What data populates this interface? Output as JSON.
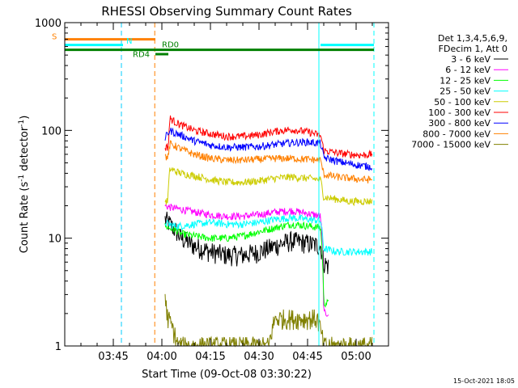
{
  "chart_data": {
    "type": "line",
    "title": "RHESSI Observing Summary Count Rates",
    "xlabel": "Start Time (09-Oct-08 03:30:22)",
    "ylabel_main": "Count Rate (s",
    "ylabel_sup1": "-1",
    "ylabel_mid": " detector",
    "ylabel_sup2": "-1",
    "ylabel_end": ")",
    "x_unit": "minutes after 03:30 UT",
    "xlim": [
      0,
      100
    ],
    "ylim": [
      1,
      1000
    ],
    "yscale": "log",
    "x_ticks": [
      {
        "label": "03:45",
        "value": 15
      },
      {
        "label": "04:00",
        "value": 30
      },
      {
        "label": "04:15",
        "value": 45
      },
      {
        "label": "04:30",
        "value": 60
      },
      {
        "label": "04:45",
        "value": 75
      },
      {
        "label": "05:00",
        "value": 90
      }
    ],
    "y_ticks": [
      {
        "label": "1",
        "value": 1
      },
      {
        "label": "10",
        "value": 10
      },
      {
        "label": "100",
        "value": 100
      },
      {
        "label": "1000",
        "value": 1000
      }
    ],
    "legend_header": [
      "Det 1,3,4,5,6,9,",
      "FDecim 1, Att 0"
    ],
    "legend_position": "right",
    "series": [
      {
        "name": "3 - 6 keV",
        "color": "#000000",
        "data_start": 31,
        "x": [
          31,
          32,
          34,
          36,
          40,
          45,
          50,
          55,
          60,
          65,
          70,
          75,
          79,
          80,
          81.5
        ],
        "y": [
          15,
          14,
          12,
          10,
          8.5,
          7.5,
          7,
          7,
          7.5,
          8.5,
          9.5,
          9,
          8.5,
          6,
          5.5
        ]
      },
      {
        "name": "6 - 12 keV",
        "color": "#ff00ff",
        "data_start": 31,
        "x": [
          31,
          32,
          34,
          36,
          40,
          45,
          50,
          55,
          60,
          65,
          70,
          75,
          79,
          80,
          81.5
        ],
        "y": [
          20,
          19.5,
          19,
          18.5,
          17.5,
          16.5,
          16,
          16,
          16.5,
          17.5,
          18,
          17,
          16,
          2,
          2
        ]
      },
      {
        "name": "12 - 25 keV",
        "color": "#00ff00",
        "data_start": 31,
        "x": [
          31,
          32,
          34,
          36,
          40,
          45,
          50,
          55,
          60,
          65,
          70,
          75,
          79,
          80,
          81.5
        ],
        "y": [
          13,
          12.5,
          12,
          11,
          10.5,
          10,
          10,
          10.5,
          11.5,
          12.5,
          13.5,
          13,
          12.5,
          2.5,
          2.5
        ]
      },
      {
        "name": "25 - 50 keV",
        "color": "#00ffff",
        "data_start": 31,
        "x": [
          31,
          32,
          34,
          36,
          40,
          45,
          50,
          55,
          60,
          65,
          70,
          75,
          79,
          80,
          84,
          88,
          92,
          95
        ],
        "y": [
          14,
          13.5,
          13,
          13,
          13.5,
          14,
          13.5,
          13.5,
          14,
          15,
          15.5,
          15,
          14.5,
          8,
          7.5,
          7.5,
          7.5,
          7.5
        ]
      },
      {
        "name": "50 - 100 keV",
        "color": "#cccc00",
        "data_start": 31,
        "x": [
          31,
          31.8,
          32.5,
          34,
          36,
          40,
          45,
          50,
          55,
          60,
          65,
          70,
          75,
          79,
          80,
          84,
          88,
          92,
          95
        ],
        "y": [
          22,
          22,
          44,
          42,
          40,
          38,
          35,
          33,
          33,
          34,
          36,
          37,
          36,
          35,
          24,
          23,
          22,
          22,
          22
        ]
      },
      {
        "name": "100 - 300 keV",
        "color": "#ff0000",
        "data_start": 31,
        "x": [
          31,
          32,
          32.5,
          34,
          36,
          40,
          45,
          50,
          55,
          60,
          65,
          70,
          75,
          79,
          80,
          84,
          88,
          92,
          95
        ],
        "y": [
          70,
          70,
          130,
          120,
          112,
          100,
          93,
          88,
          88,
          91,
          98,
          102,
          97,
          90,
          65,
          62,
          60,
          59,
          60
        ]
      },
      {
        "name": "300 - 800 keV",
        "color": "#0000ff",
        "data_start": 31,
        "x": [
          31,
          32.5,
          34,
          36,
          40,
          45,
          50,
          55,
          60,
          65,
          70,
          75,
          79,
          80,
          84,
          88,
          92,
          95
        ],
        "y": [
          85,
          100,
          95,
          90,
          80,
          73,
          70,
          70,
          71,
          74,
          77,
          78,
          76,
          56,
          52,
          49,
          47,
          46
        ]
      },
      {
        "name": "800 - 7000 keV",
        "color": "#ff8000",
        "data_start": 31,
        "x": [
          31,
          32,
          32.5,
          34,
          36,
          40,
          45,
          50,
          55,
          60,
          65,
          70,
          75,
          79,
          80,
          84,
          88,
          92,
          95
        ],
        "y": [
          57,
          57,
          75,
          72,
          67,
          60,
          55,
          53,
          53,
          54,
          55,
          55,
          54,
          53,
          39,
          37,
          36,
          35,
          35
        ]
      },
      {
        "name": "7000 - 15000 keV",
        "color": "#808000",
        "data_start": 31,
        "x": [
          31,
          31.5,
          32,
          35,
          40,
          45,
          50,
          55,
          60,
          63,
          65,
          70,
          75,
          78,
          80,
          85,
          90,
          95
        ],
        "y": [
          3,
          2,
          1.8,
          1,
          1,
          1,
          1,
          1,
          1,
          1,
          1.8,
          1.8,
          1.8,
          1.8,
          1,
          1,
          1,
          1
        ]
      }
    ],
    "vertical_lines": [
      {
        "x": 17.5,
        "color": "#00ccff",
        "style": "dashed"
      },
      {
        "x": 27.8,
        "color": "#ff8000",
        "style": "dashed"
      },
      {
        "x": 78.5,
        "color": "#00ffff",
        "style": "solid"
      },
      {
        "x": 95.5,
        "color": "#00ffff",
        "style": "dashed"
      }
    ],
    "flag_bars": [
      {
        "label": "S",
        "color": "#ff8000",
        "x_start": 0,
        "x_end": 28,
        "y": 700
      },
      {
        "label": "N",
        "color": "#00ffff",
        "x_start": 0,
        "x_end": 18,
        "y": 620
      },
      {
        "label": "N",
        "color": "#00ffff",
        "x_start": 79,
        "x_end": 95.5,
        "y": 620
      },
      {
        "label": "RD0",
        "color": "#008000",
        "x_start": 0,
        "x_end": 95.5,
        "y": 560
      },
      {
        "label": "RD4",
        "color": "#008000",
        "x_start": 28,
        "x_end": 32,
        "y": 510
      }
    ],
    "flag_labels": [
      {
        "text": "S",
        "color": "#ff8000",
        "x": -4,
        "y": 700
      },
      {
        "text": "N",
        "color": "#00ffff",
        "x": 19,
        "y": 640
      },
      {
        "text": "RD0",
        "color": "#008000",
        "x": 30,
        "y": 590
      },
      {
        "text": "RD4",
        "color": "#008000",
        "x": 21,
        "y": 480
      }
    ]
  },
  "footer_stamp": "15-Oct-2021 18:05"
}
